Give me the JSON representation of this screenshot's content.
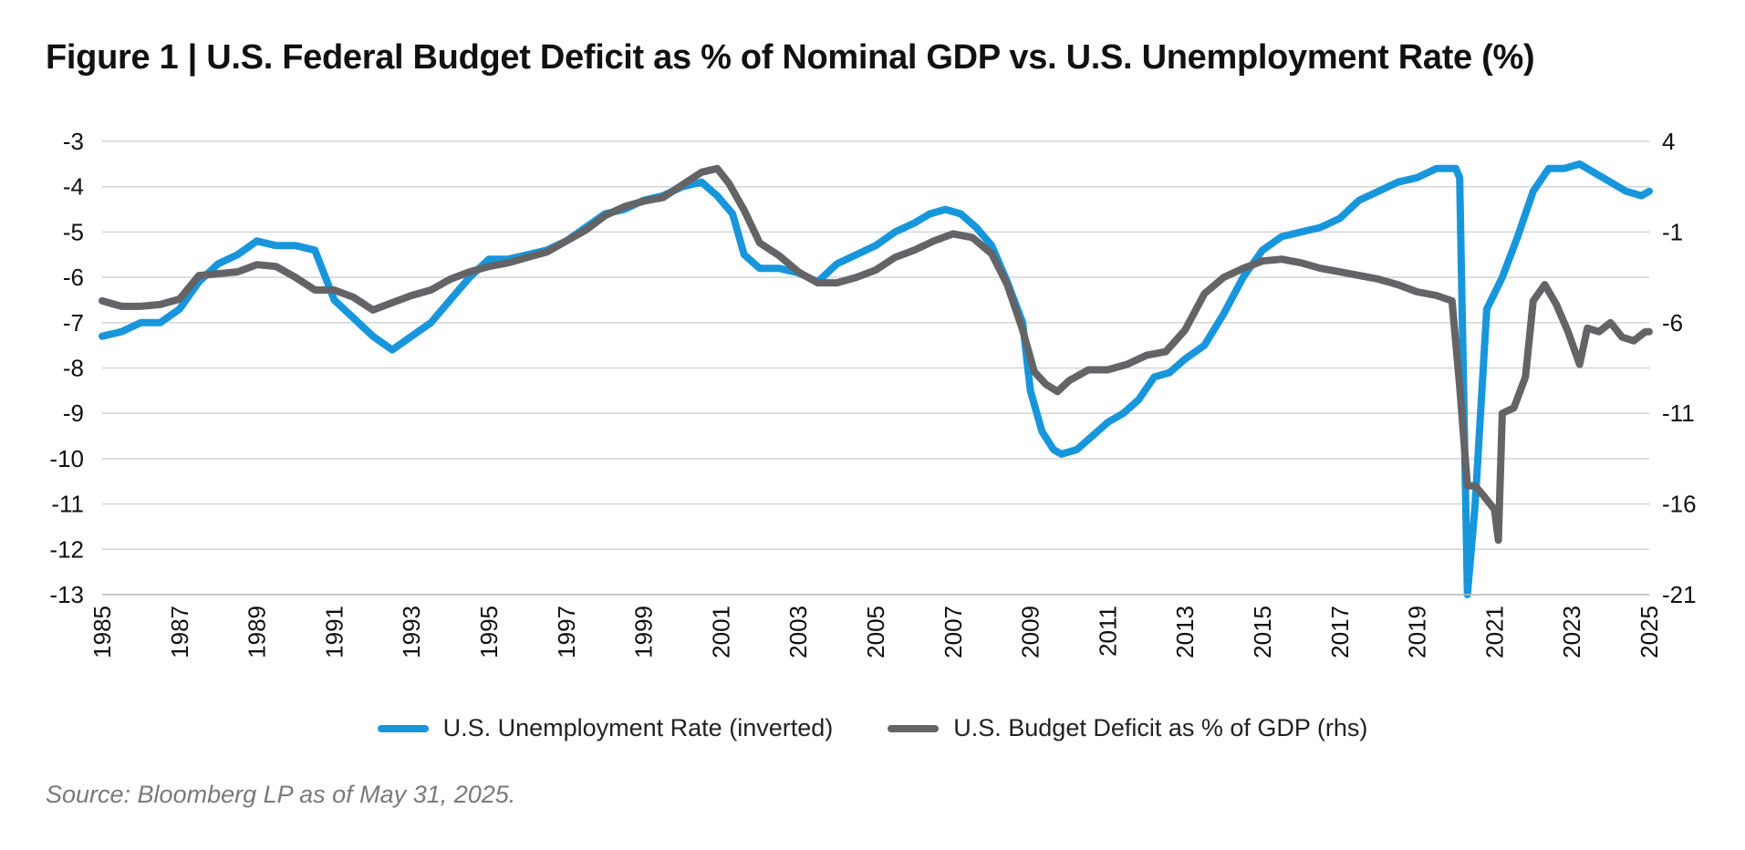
{
  "title": "Figure 1 | U.S. Federal Budget Deficit as % of Nominal GDP vs. U.S. Unemployment Rate (%)",
  "source": "Source: Bloomberg LP as of May 31, 2025.",
  "colors": {
    "unemployment": "#1896dc",
    "deficit": "#646466",
    "grid": "#d4d4d4"
  },
  "chart_data": {
    "type": "line",
    "title": "Figure 1 | U.S. Federal Budget Deficit as % of Nominal GDP vs. U.S. Unemployment Rate (%)",
    "xlabel": "",
    "ylabel_left": "",
    "ylabel_right": "",
    "xlim": [
      1985,
      2025
    ],
    "ylim_left": [
      -13,
      -3
    ],
    "ylim_right": [
      -21,
      4
    ],
    "y_left_ticks": [
      -3,
      -4,
      -5,
      -6,
      -7,
      -8,
      -9,
      -10,
      -11,
      -12,
      -13
    ],
    "y_right_ticks": [
      4,
      -1,
      -6,
      -11,
      -16,
      -21
    ],
    "x_ticks": [
      1985,
      1987,
      1989,
      1991,
      1993,
      1995,
      1997,
      1999,
      2001,
      2003,
      2005,
      2007,
      2009,
      2011,
      2013,
      2015,
      2017,
      2019,
      2021,
      2023,
      2025
    ],
    "grid": true,
    "legend_position": "bottom",
    "series": [
      {
        "name": "U.S. Unemployment Rate (inverted)",
        "axis": "left",
        "x": [
          1985.0,
          1985.5,
          1986.0,
          1986.5,
          1987.0,
          1987.5,
          1988.0,
          1988.5,
          1989.0,
          1989.5,
          1990.0,
          1990.5,
          1991.0,
          1991.5,
          1992.0,
          1992.5,
          1993.0,
          1993.5,
          1994.0,
          1994.5,
          1995.0,
          1995.5,
          1996.0,
          1996.5,
          1997.0,
          1997.5,
          1998.0,
          1998.5,
          1999.0,
          1999.5,
          2000.0,
          2000.5,
          2000.9,
          2001.3,
          2001.6,
          2002.0,
          2002.5,
          2003.0,
          2003.5,
          2004.0,
          2004.5,
          2005.0,
          2005.5,
          2006.0,
          2006.4,
          2006.8,
          2007.2,
          2007.6,
          2008.0,
          2008.4,
          2008.8,
          2009.0,
          2009.3,
          2009.6,
          2009.8,
          2010.2,
          2010.6,
          2011.0,
          2011.4,
          2011.8,
          2012.2,
          2012.6,
          2013.0,
          2013.5,
          2014.0,
          2014.5,
          2015.0,
          2015.5,
          2016.0,
          2016.5,
          2017.0,
          2017.5,
          2018.0,
          2018.5,
          2019.0,
          2019.5,
          2020.0,
          2020.1,
          2020.3,
          2020.5,
          2020.8,
          2021.2,
          2021.6,
          2022.0,
          2022.4,
          2022.8,
          2023.2,
          2023.6,
          2024.0,
          2024.4,
          2024.8,
          2025.0
        ],
        "values": [
          -7.3,
          -7.2,
          -7.0,
          -7.0,
          -6.7,
          -6.1,
          -5.7,
          -5.5,
          -5.2,
          -5.3,
          -5.3,
          -5.4,
          -6.5,
          -6.9,
          -7.3,
          -7.6,
          -7.3,
          -7.0,
          -6.5,
          -6.0,
          -5.6,
          -5.6,
          -5.5,
          -5.4,
          -5.2,
          -4.9,
          -4.6,
          -4.5,
          -4.3,
          -4.2,
          -4.0,
          -3.9,
          -4.2,
          -4.6,
          -5.5,
          -5.8,
          -5.8,
          -5.9,
          -6.1,
          -5.7,
          -5.5,
          -5.3,
          -5.0,
          -4.8,
          -4.6,
          -4.5,
          -4.6,
          -4.9,
          -5.3,
          -6.1,
          -7.0,
          -8.5,
          -9.4,
          -9.8,
          -9.9,
          -9.8,
          -9.5,
          -9.2,
          -9.0,
          -8.7,
          -8.2,
          -8.1,
          -7.8,
          -7.5,
          -6.8,
          -6.0,
          -5.4,
          -5.1,
          -5.0,
          -4.9,
          -4.7,
          -4.3,
          -4.1,
          -3.9,
          -3.8,
          -3.6,
          -3.6,
          -3.8,
          -13.0,
          -11.0,
          -6.7,
          -6.0,
          -5.1,
          -4.1,
          -3.6,
          -3.6,
          -3.5,
          -3.7,
          -3.9,
          -4.1,
          -4.2,
          -4.1
        ]
      },
      {
        "name": "U.S. Budget Deficit as % of GDP (rhs)",
        "axis": "right",
        "x": [
          1985.0,
          1985.5,
          1986.0,
          1986.5,
          1987.0,
          1987.5,
          1988.0,
          1988.5,
          1989.0,
          1989.5,
          1990.0,
          1990.5,
          1991.0,
          1991.5,
          1992.0,
          1992.5,
          1993.0,
          1993.5,
          1994.0,
          1994.5,
          1995.0,
          1995.5,
          1996.0,
          1996.5,
          1997.0,
          1997.5,
          1998.0,
          1998.5,
          1999.0,
          1999.5,
          2000.0,
          2000.5,
          2000.9,
          2001.2,
          2001.6,
          2002.0,
          2002.5,
          2003.0,
          2003.5,
          2004.0,
          2004.5,
          2005.0,
          2005.5,
          2006.0,
          2006.5,
          2007.0,
          2007.5,
          2008.0,
          2008.4,
          2008.8,
          2009.1,
          2009.4,
          2009.7,
          2010.0,
          2010.5,
          2011.0,
          2011.5,
          2012.0,
          2012.5,
          2013.0,
          2013.5,
          2014.0,
          2014.5,
          2015.0,
          2015.5,
          2016.0,
          2016.5,
          2017.0,
          2017.5,
          2018.0,
          2018.5,
          2019.0,
          2019.5,
          2019.9,
          2020.1,
          2020.3,
          2020.5,
          2020.7,
          2021.0,
          2021.1,
          2021.2,
          2021.5,
          2021.8,
          2022.0,
          2022.3,
          2022.6,
          2022.9,
          2023.2,
          2023.4,
          2023.7,
          2024.0,
          2024.3,
          2024.6,
          2024.9,
          2025.0
        ],
        "values": [
          -4.8,
          -5.1,
          -5.1,
          -5.0,
          -4.7,
          -3.4,
          -3.3,
          -3.2,
          -2.8,
          -2.9,
          -3.5,
          -4.2,
          -4.2,
          -4.6,
          -5.3,
          -4.9,
          -4.5,
          -4.2,
          -3.6,
          -3.2,
          -2.9,
          -2.7,
          -2.4,
          -2.1,
          -1.5,
          -0.9,
          -0.1,
          0.4,
          0.7,
          0.9,
          1.6,
          2.3,
          2.5,
          1.7,
          0.2,
          -1.6,
          -2.3,
          -3.2,
          -3.8,
          -3.8,
          -3.5,
          -3.1,
          -2.4,
          -2.0,
          -1.5,
          -1.1,
          -1.3,
          -2.2,
          -3.9,
          -6.4,
          -8.7,
          -9.4,
          -9.8,
          -9.2,
          -8.6,
          -8.6,
          -8.3,
          -7.8,
          -7.6,
          -6.4,
          -4.4,
          -3.5,
          -3.0,
          -2.6,
          -2.5,
          -2.7,
          -3.0,
          -3.2,
          -3.4,
          -3.6,
          -3.9,
          -4.3,
          -4.5,
          -4.8,
          -9.5,
          -15.0,
          -15.0,
          -15.5,
          -16.3,
          -18.0,
          -11.0,
          -10.7,
          -9.0,
          -4.8,
          -3.9,
          -5.0,
          -6.5,
          -8.3,
          -6.3,
          -6.5,
          -6.0,
          -6.8,
          -7.0,
          -6.5,
          -6.5
        ]
      }
    ]
  }
}
